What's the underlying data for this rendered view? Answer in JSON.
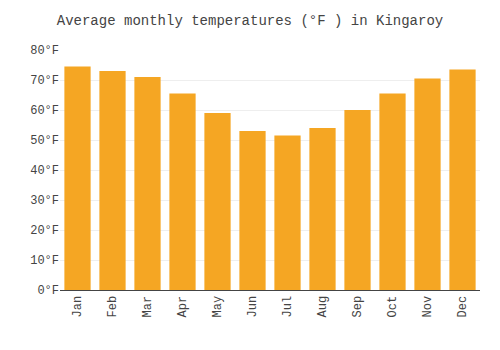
{
  "chart_data": {
    "type": "bar",
    "title": "Average monthly temperatures (°F ) in Kingaroy",
    "categories": [
      "Jan",
      "Feb",
      "Mar",
      "Apr",
      "May",
      "Jun",
      "Jul",
      "Aug",
      "Sep",
      "Oct",
      "Nov",
      "Dec"
    ],
    "values": [
      74.5,
      73,
      71,
      65.5,
      59,
      53,
      51.5,
      54,
      60,
      65.5,
      70.5,
      73.5
    ],
    "color": "#F5A623",
    "ylim": [
      0,
      80
    ],
    "yticks": [
      {
        "value": 0,
        "label": "0°F"
      },
      {
        "value": 10,
        "label": "10°F"
      },
      {
        "value": 20,
        "label": "20°F"
      },
      {
        "value": 30,
        "label": "30°F"
      },
      {
        "value": 40,
        "label": "40°F"
      },
      {
        "value": 50,
        "label": "50°F"
      },
      {
        "value": 60,
        "label": "60°F"
      },
      {
        "value": 70,
        "label": "70°F"
      },
      {
        "value": 80,
        "label": "80°F"
      }
    ],
    "grid": true
  }
}
